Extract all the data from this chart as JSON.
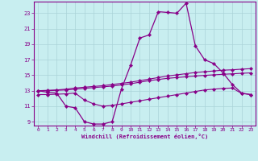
{
  "xlabel": "Windchill (Refroidissement éolien,°C)",
  "background_color": "#c8eef0",
  "grid_color": "#aad4d8",
  "line_color": "#880088",
  "x_hours": [
    0,
    1,
    2,
    3,
    4,
    5,
    6,
    7,
    8,
    9,
    10,
    11,
    12,
    13,
    14,
    15,
    16,
    17,
    18,
    19,
    20,
    21,
    22,
    23
  ],
  "ylim": [
    8.5,
    24.5
  ],
  "yticks": [
    9,
    11,
    13,
    15,
    17,
    19,
    21,
    23
  ],
  "xticks": [
    0,
    1,
    2,
    3,
    4,
    5,
    6,
    7,
    8,
    9,
    10,
    11,
    12,
    13,
    14,
    15,
    16,
    17,
    18,
    19,
    20,
    21,
    22,
    23
  ],
  "line1_y": [
    13.0,
    12.8,
    12.7,
    11.0,
    10.8,
    9.0,
    8.7,
    8.7,
    9.0,
    13.2,
    16.3,
    19.8,
    20.2,
    23.2,
    23.1,
    23.0,
    24.3,
    18.8,
    17.0,
    16.5,
    15.3,
    13.8,
    12.7,
    12.5
  ],
  "line2_y": [
    13.0,
    13.05,
    13.1,
    13.2,
    13.35,
    13.45,
    13.55,
    13.65,
    13.8,
    13.95,
    14.1,
    14.3,
    14.5,
    14.7,
    14.9,
    15.05,
    15.2,
    15.35,
    15.45,
    15.55,
    15.65,
    15.7,
    15.78,
    15.85
  ],
  "line3_y": [
    13.0,
    13.0,
    13.05,
    13.1,
    13.2,
    13.3,
    13.4,
    13.5,
    13.6,
    13.75,
    13.9,
    14.1,
    14.3,
    14.45,
    14.6,
    14.7,
    14.8,
    14.9,
    14.98,
    15.05,
    15.12,
    15.18,
    15.25,
    15.3
  ],
  "line4_y": [
    12.5,
    12.5,
    12.55,
    12.6,
    12.7,
    11.8,
    11.3,
    11.0,
    11.1,
    11.3,
    11.5,
    11.7,
    11.9,
    12.1,
    12.3,
    12.5,
    12.7,
    12.9,
    13.1,
    13.2,
    13.3,
    13.35,
    12.65,
    12.5
  ]
}
